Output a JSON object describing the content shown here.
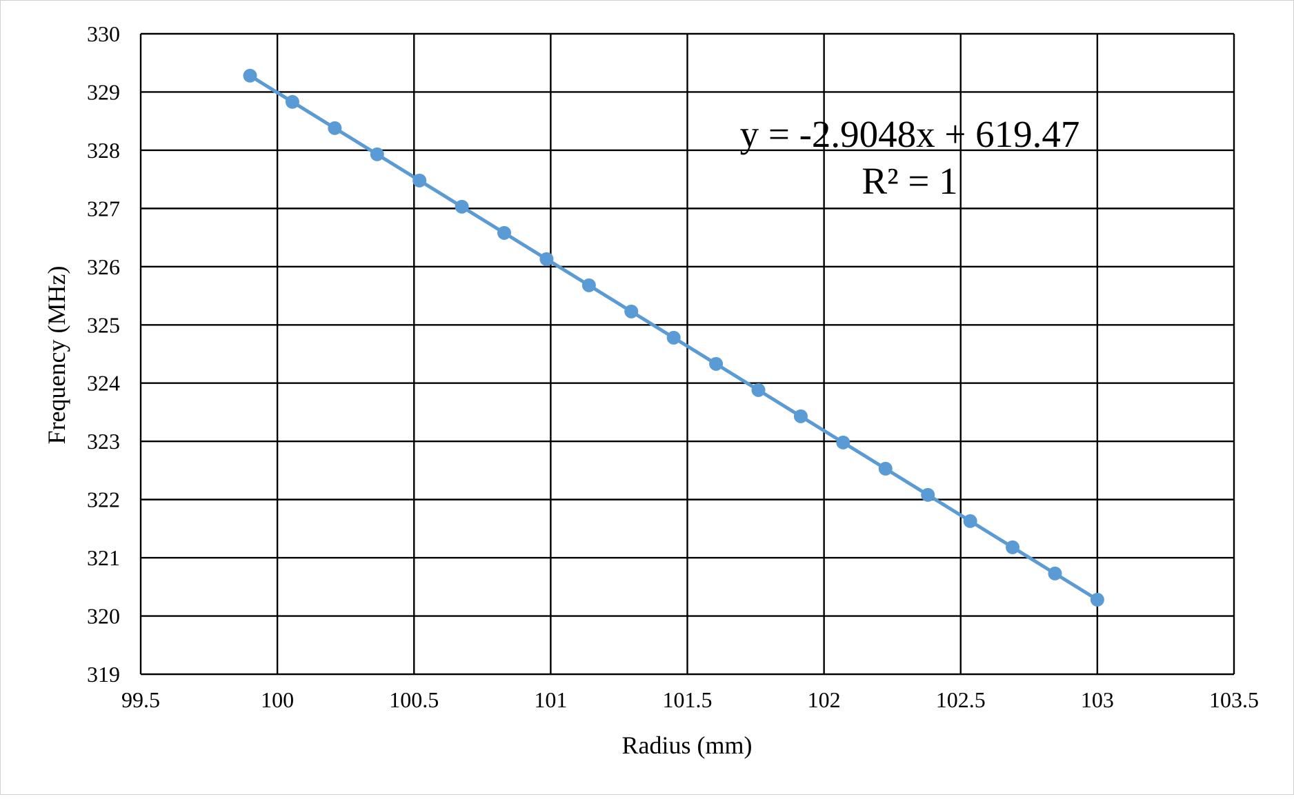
{
  "chart_data": {
    "type": "scatter",
    "xlabel": "Radius (mm)",
    "ylabel": "Frequency (MHz)",
    "xlim": [
      99.5,
      103.5
    ],
    "ylim": [
      319,
      330
    ],
    "xticks": [
      "99.5",
      "100",
      "100.5",
      "101",
      "101.5",
      "102",
      "102.5",
      "103",
      "103.5"
    ],
    "yticks": [
      "319",
      "320",
      "321",
      "322",
      "323",
      "324",
      "325",
      "326",
      "327",
      "328",
      "329",
      "330"
    ],
    "grid": true,
    "series_color": "#5B9BD5",
    "trendline": {
      "type": "linear",
      "slope": -2.9048,
      "intercept": 619.47,
      "equation": "y = -2.9048x + 619.47",
      "r_squared": "R² = 1"
    },
    "x": [
      99.9,
      100.055,
      100.21,
      100.365,
      100.52,
      100.675,
      100.83,
      100.985,
      101.14,
      101.295,
      101.45,
      101.605,
      101.76,
      101.915,
      102.07,
      102.225,
      102.38,
      102.535,
      102.69,
      102.845,
      103.0
    ],
    "y": [
      329.28,
      328.83,
      328.38,
      327.93,
      327.48,
      327.03,
      326.58,
      326.13,
      325.68,
      325.23,
      324.78,
      324.33,
      323.88,
      323.43,
      322.98,
      322.53,
      322.08,
      321.63,
      321.18,
      320.73,
      320.28
    ]
  }
}
